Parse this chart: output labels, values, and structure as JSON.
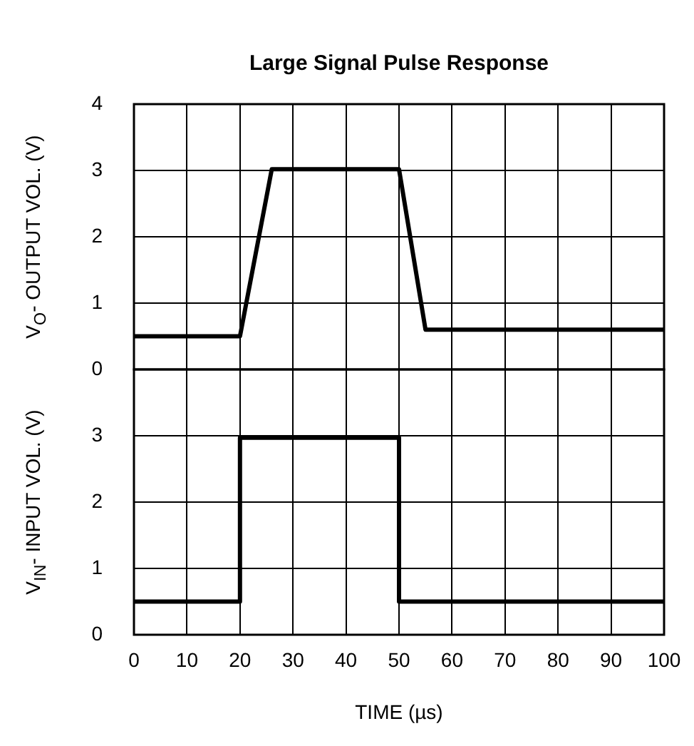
{
  "chart_data": [
    {
      "type": "line",
      "title": "Large Signal Pulse Response",
      "ylabel": "V$_{O}$- OUTPUT VOL. (V)",
      "x": [
        0,
        20,
        26,
        50,
        55,
        100
      ],
      "series": [
        {
          "color": "#000000",
          "values": [
            0.5,
            0.5,
            3.02,
            3.02,
            0.6,
            0.6
          ]
        }
      ],
      "xlim": [
        0,
        100
      ],
      "xticks": [
        0,
        10,
        20,
        30,
        40,
        50,
        60,
        70,
        80,
        90,
        100
      ],
      "ylim": [
        0,
        4
      ],
      "yticks": [
        0,
        1,
        2,
        3,
        4
      ],
      "grid": true,
      "marker": "none",
      "tick_labels": "y"
    },
    {
      "type": "line",
      "xlabel": "TIME (µs)",
      "ylabel": "V$_{IN}$- INPUT VOL. (V)",
      "x": [
        0,
        20,
        20,
        50,
        50,
        100
      ],
      "series": [
        {
          "color": "#000000",
          "values": [
            0.5,
            0.5,
            2.97,
            2.97,
            0.5,
            0.5
          ]
        }
      ],
      "xlim": [
        0,
        100
      ],
      "xticks": [
        0,
        10,
        20,
        30,
        40,
        50,
        60,
        70,
        80,
        90,
        100
      ],
      "ylim": [
        0,
        4
      ],
      "yticks": [
        0,
        1,
        2,
        3
      ],
      "grid": true,
      "marker": "none"
    }
  ]
}
